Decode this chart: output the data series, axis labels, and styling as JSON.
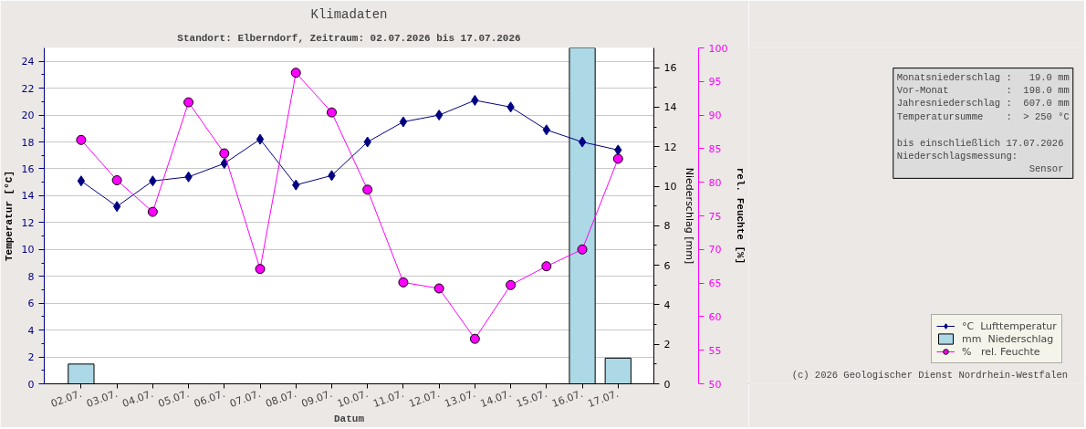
{
  "chart_data": {
    "type": "line",
    "title": "Klimadaten",
    "subtitle": "Standort: Elberndorf, Zeitraum: 02.07.2026 bis 17.07.2026",
    "xlabel": "Datum",
    "ylabel": "Temperatur [°C]",
    "y2label": "Niederschlag [mm]",
    "y3label": "rel. Feuchte [%]",
    "categories": [
      "02.07.",
      "03.07.",
      "04.07.",
      "05.07.",
      "06.07.",
      "07.07.",
      "08.07.",
      "09.07.",
      "10.07.",
      "11.07.",
      "12.07.",
      "13.07.",
      "14.07.",
      "15.07.",
      "16.07.",
      "17.07."
    ],
    "series": [
      {
        "name": "°C  Lufttemperatur",
        "color": "#000080",
        "marker": "diamond",
        "values": [
          15.1,
          13.2,
          15.1,
          15.4,
          16.4,
          18.2,
          14.8,
          15.5,
          18.0,
          19.5,
          20.0,
          21.1,
          20.6,
          18.9,
          18.0,
          17.4
        ]
      },
      {
        "name": "mm  Niederschlag",
        "type": "bar",
        "axis": "y2",
        "color": "#add8e6",
        "values": [
          1.0,
          null,
          null,
          null,
          null,
          null,
          null,
          null,
          null,
          null,
          null,
          null,
          null,
          null,
          17.0,
          1.3
        ]
      },
      {
        "name": "%   rel. Feuchte",
        "axis": "y3",
        "color": "#ff00ff",
        "marker": "circle",
        "values": [
          86.3,
          80.3,
          75.6,
          91.9,
          84.3,
          67.1,
          96.3,
          90.4,
          78.9,
          65.1,
          64.2,
          56.7,
          64.7,
          67.5,
          70.0,
          83.5
        ]
      }
    ],
    "ylim": [
      0,
      25
    ],
    "yticks": [
      0,
      {
        "value": 1,
        "label": null
      },
      2,
      {
        "value": 3,
        "label": null
      },
      4,
      {
        "value": 5,
        "label": null
      },
      6,
      {
        "value": 7,
        "label": null
      },
      8,
      {
        "value": 9,
        "label": null
      },
      10,
      {
        "value": 11,
        "label": null
      },
      12,
      {
        "value": 13,
        "label": null
      },
      14,
      {
        "value": 15,
        "label": null
      },
      16,
      {
        "value": 17,
        "label": null
      },
      18,
      {
        "value": 19,
        "label": null
      },
      20,
      {
        "value": 21,
        "label": null
      },
      22,
      {
        "value": 23,
        "label": null
      },
      24
    ],
    "y2lim": [
      0,
      17
    ],
    "y2ticks": [
      0,
      {
        "value": 1,
        "label": null
      },
      2,
      {
        "value": 3,
        "label": null
      },
      4,
      {
        "value": 5,
        "label": null
      },
      6,
      {
        "value": 7,
        "label": null
      },
      8,
      {
        "value": 9,
        "label": null
      },
      10,
      {
        "value": 11,
        "label": null
      },
      12,
      {
        "value": 13,
        "label": null
      },
      14,
      {
        "value": 15,
        "label": null
      },
      16
    ],
    "y3lim": [
      50,
      100
    ],
    "y3ticks": [
      50,
      55,
      60,
      65,
      70,
      75,
      80,
      85,
      90,
      95,
      100
    ],
    "grid": "y",
    "legend": "right",
    "annotations": [
      "Monatsniederschlag :   19.0 mm\nVor-Monat          :  198.0 mm\nJahresniederschlag :  607.0 mm\nTemperatursumme    :  > 250 °C\n\nbis einschließlich 17.07.2026\nNiederschlagsmessung:\n                       Sensor",
      "(c) 2026 Geologischer Dienst Nordrhein-Westfalen"
    ]
  }
}
